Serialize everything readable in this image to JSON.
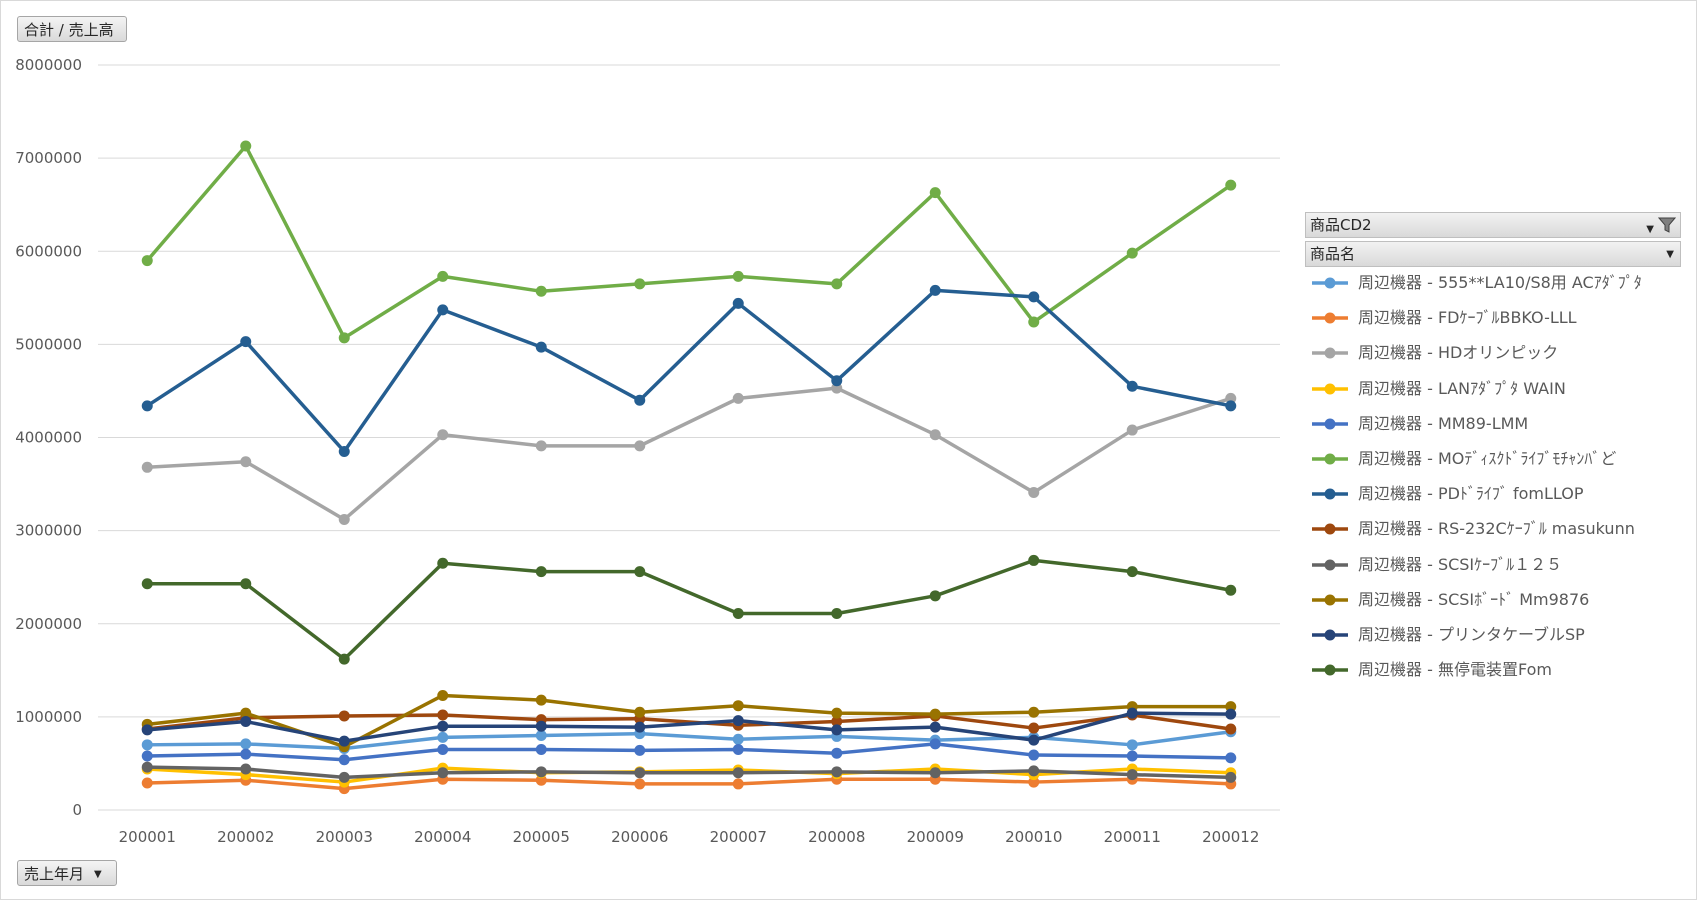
{
  "value_field_button": {
    "label": "合計 / 売上高"
  },
  "axis_field_button": {
    "label": "売上年月"
  },
  "legend_fields": [
    {
      "label": "商品CD2",
      "has_filter": true
    },
    {
      "label": "商品名",
      "has_filter": false
    }
  ],
  "chart_data": {
    "type": "line",
    "title": "",
    "xlabel": "",
    "ylabel": "",
    "ylim": [
      0,
      8000000
    ],
    "yticks": [
      0,
      1000000,
      2000000,
      3000000,
      4000000,
      5000000,
      6000000,
      7000000,
      8000000
    ],
    "grid": true,
    "legend_position": "right",
    "categories": [
      "200001",
      "200002",
      "200003",
      "200004",
      "200005",
      "200006",
      "200007",
      "200008",
      "200009",
      "200010",
      "200011",
      "200012"
    ],
    "series": [
      {
        "name": "周辺機器 - 555**LA10/S8用 ACｱﾀﾞﾌﾟﾀ",
        "color": "#5b9bd5",
        "values": [
          700000,
          710000,
          660000,
          780000,
          800000,
          820000,
          760000,
          790000,
          750000,
          780000,
          700000,
          840000
        ]
      },
      {
        "name": "周辺機器 - FDｹｰﾌﾞﾙBBKO-LLL",
        "color": "#ed7d31",
        "values": [
          290000,
          320000,
          230000,
          330000,
          320000,
          280000,
          280000,
          330000,
          330000,
          300000,
          330000,
          280000
        ]
      },
      {
        "name": "周辺機器 - HDオリンピック",
        "color": "#a5a5a5",
        "values": [
          3680000,
          3740000,
          3120000,
          4030000,
          3910000,
          3910000,
          4420000,
          4530000,
          4030000,
          3410000,
          4080000,
          4420000
        ]
      },
      {
        "name": "周辺機器 - LANｱﾀﾞﾌﾟﾀ WAIN",
        "color": "#ffc000",
        "values": [
          440000,
          380000,
          300000,
          450000,
          400000,
          410000,
          430000,
          390000,
          440000,
          380000,
          440000,
          400000
        ]
      },
      {
        "name": "周辺機器 - MM89-LMM",
        "color": "#4472c4",
        "values": [
          580000,
          600000,
          540000,
          650000,
          650000,
          640000,
          650000,
          610000,
          710000,
          590000,
          580000,
          560000
        ]
      },
      {
        "name": "周辺機器 - MOﾃﾞｨｽｸﾄﾞﾗｲﾌﾞﾓﾁｬﾝﾊﾞど",
        "color": "#70ad47",
        "values": [
          5900000,
          7130000,
          5070000,
          5730000,
          5570000,
          5650000,
          5730000,
          5650000,
          6630000,
          5240000,
          5980000,
          6710000
        ]
      },
      {
        "name": "周辺機器 - PDﾄﾞﾗｲﾌﾞ fomLLOP",
        "color": "#255e91",
        "values": [
          4340000,
          5030000,
          3850000,
          5370000,
          4970000,
          4400000,
          5440000,
          4610000,
          5580000,
          5510000,
          4550000,
          4340000
        ]
      },
      {
        "name": "周辺機器 - RS-232Cｹｰﾌﾞﾙ masukunn",
        "color": "#9e480e",
        "values": [
          870000,
          990000,
          1010000,
          1020000,
          970000,
          980000,
          910000,
          950000,
          1010000,
          880000,
          1020000,
          870000
        ]
      },
      {
        "name": "周辺機器 - SCSIｹｰﾌﾞﾙ１２５",
        "color": "#636363",
        "values": [
          460000,
          440000,
          350000,
          400000,
          410000,
          400000,
          400000,
          410000,
          400000,
          420000,
          380000,
          350000
        ]
      },
      {
        "name": "周辺機器 - SCSIﾎﾞｰﾄﾞ Mm9876",
        "color": "#997300",
        "values": [
          920000,
          1040000,
          680000,
          1230000,
          1180000,
          1050000,
          1120000,
          1040000,
          1030000,
          1050000,
          1110000,
          1110000
        ]
      },
      {
        "name": "周辺機器 - プリンタケーブルSP",
        "color": "#264478",
        "values": [
          860000,
          950000,
          740000,
          900000,
          900000,
          890000,
          960000,
          860000,
          890000,
          750000,
          1040000,
          1030000
        ]
      },
      {
        "name": "周辺機器 - 無停電装置Fom",
        "color": "#43682b",
        "values": [
          2430000,
          2430000,
          1620000,
          2650000,
          2560000,
          2560000,
          2110000,
          2110000,
          2300000,
          2680000,
          2560000,
          2360000
        ]
      }
    ]
  }
}
